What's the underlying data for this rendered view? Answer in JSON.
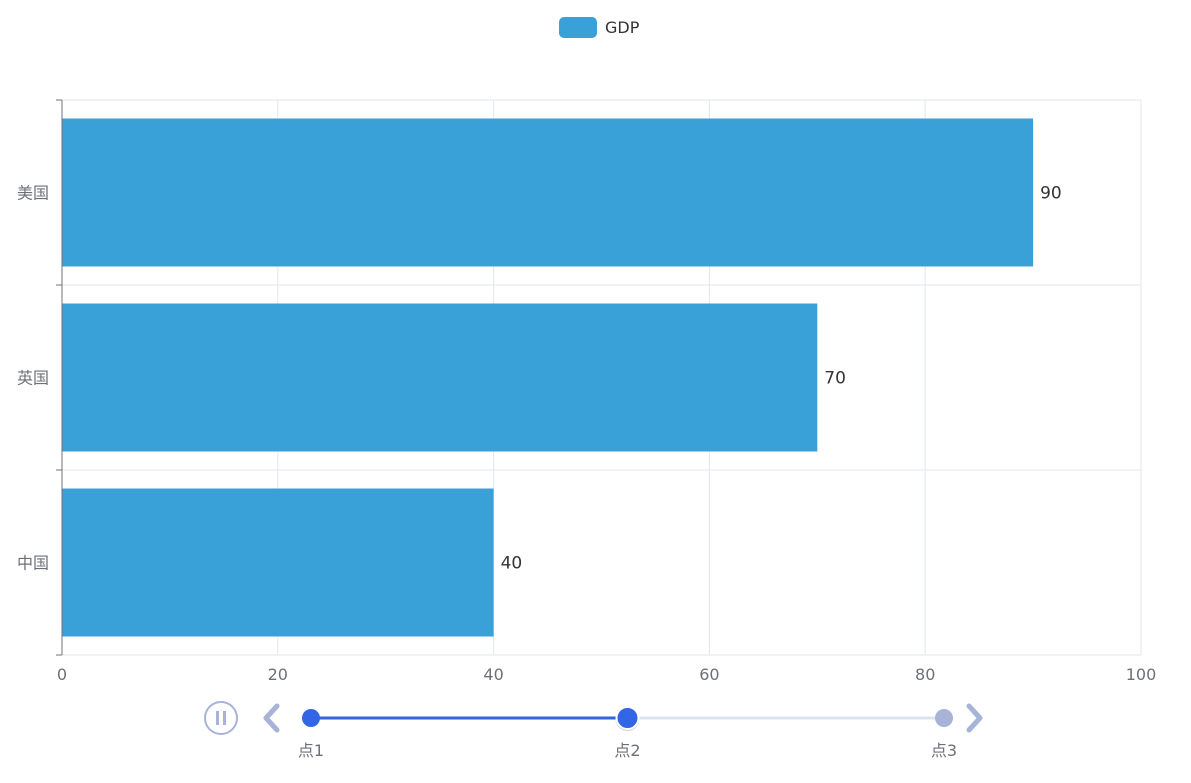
{
  "chart_data": {
    "type": "bar",
    "orientation": "horizontal",
    "categories": [
      "美国",
      "英国",
      "中国"
    ],
    "series": [
      {
        "name": "GDP",
        "values": [
          90,
          70,
          40
        ],
        "color": "#3aa1d8"
      }
    ],
    "xlim": [
      0,
      100
    ],
    "x_ticks": [
      0,
      20,
      40,
      60,
      80,
      100
    ],
    "grid": true,
    "legend_position": "top-center",
    "show_data_labels": true
  },
  "timeline": {
    "points": [
      "点1",
      "点2",
      "点3"
    ],
    "current_index": 1,
    "playing": true,
    "active_color": "#3366e6",
    "inactive_color": "#a7b4d8",
    "track_color": "#dce3f0"
  }
}
